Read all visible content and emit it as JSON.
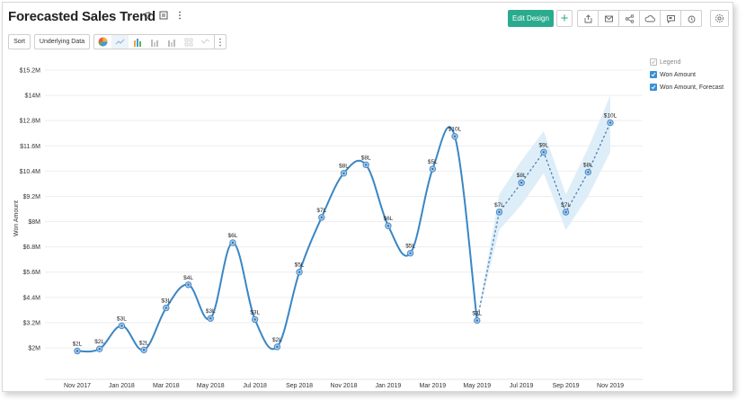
{
  "header": {
    "title": "Forecasted Sales Trend",
    "edit_design_label": "Edit Design",
    "add_label": "+",
    "title_icons": [
      "refresh-icon",
      "save-icon",
      "more-vertical-icon"
    ],
    "action_icons": [
      "export-icon",
      "email-icon",
      "share-icon",
      "publish-cloud-icon",
      "comment-icon",
      "alarm-icon",
      "settings-icon"
    ]
  },
  "toolbar": {
    "sort_label": "Sort",
    "underlying_data_label": "Underlying Data",
    "chart_types": [
      "pie-chart-icon",
      "line-chart-icon",
      "bar-chart-icon",
      "stacked-bar-icon",
      "grouped-bar-icon",
      "scatter-icon",
      "area-icon"
    ],
    "active_chart_type": "line-chart-icon"
  },
  "legend": {
    "header": "Legend",
    "items": [
      {
        "label": "Won Amount",
        "checked": true
      },
      {
        "label": "Won Amount, Forecast",
        "checked": true
      }
    ]
  },
  "colors": {
    "accent": "#2bab8e",
    "line": "#3a86c4",
    "band": "#daecf8",
    "checkbox": "#3b8fd6"
  },
  "chart_data": {
    "type": "line",
    "title": "Forecasted Sales Trend",
    "xlabel": "",
    "ylabel": "Won Amount",
    "ylim": [
      2,
      15.2
    ],
    "y_ticks": [
      "$2M",
      "$3.2M",
      "$4.4M",
      "$5.6M",
      "$6.8M",
      "$8M",
      "$9.2M",
      "$10.4M",
      "$11.6M",
      "$12.8M",
      "$14M",
      "$15.2M"
    ],
    "x_ticks": [
      "Nov 2017",
      "Jan 2018",
      "Mar 2018",
      "May 2018",
      "Jul 2018",
      "Sep 2018",
      "Nov 2018",
      "Jan 2019",
      "Mar 2019",
      "May 2019",
      "Jul 2019",
      "Sep 2019",
      "Nov 2019"
    ],
    "grid": true,
    "legend_position": "top-right",
    "series": [
      {
        "name": "Won Amount",
        "style": "solid-smooth",
        "x": [
          "Nov 2017",
          "Dec 2017",
          "Jan 2018",
          "Feb 2018",
          "Mar 2018",
          "Apr 2018",
          "May 2018",
          "Jun 2018",
          "Jul 2018",
          "Aug 2018",
          "Sep 2018",
          "Oct 2018",
          "Nov 2018",
          "Dec 2018",
          "Jan 2019",
          "Feb 2019",
          "Mar 2019",
          "Apr 2019",
          "May 2019"
        ],
        "values": [
          1.85,
          1.95,
          3.05,
          1.9,
          3.9,
          5.0,
          3.4,
          7.0,
          3.35,
          2.05,
          5.6,
          8.2,
          10.3,
          10.7,
          7.8,
          6.5,
          10.5,
          12.05,
          3.3
        ],
        "labels": [
          "$2L",
          "$2L",
          "$3L",
          "$2L",
          "$3L",
          "$4L",
          "$3L",
          "$6L",
          "$3L",
          "$2L",
          "$5L",
          "$7L",
          "$8L",
          "$8L",
          "$6L",
          "$5L",
          "$5L",
          "$10L",
          "$3L"
        ]
      },
      {
        "name": "Won Amount, Forecast",
        "style": "dashed",
        "x": [
          "May 2019",
          "Jun 2019",
          "Jul 2019",
          "Aug 2019",
          "Sep 2019",
          "Oct 2019",
          "Nov 2019"
        ],
        "values": [
          3.3,
          8.45,
          9.85,
          11.3,
          8.45,
          10.35,
          12.7
        ],
        "labels": [
          "",
          "$7L",
          "$8L",
          "$9L",
          "$7L",
          "$8L",
          "$10L"
        ],
        "confidence_band": {
          "upper": [
            3.3,
            9.3,
            10.9,
            12.3,
            9.3,
            11.5,
            14.0
          ],
          "lower": [
            3.3,
            7.6,
            8.8,
            10.3,
            7.6,
            9.2,
            11.3
          ]
        }
      }
    ]
  }
}
